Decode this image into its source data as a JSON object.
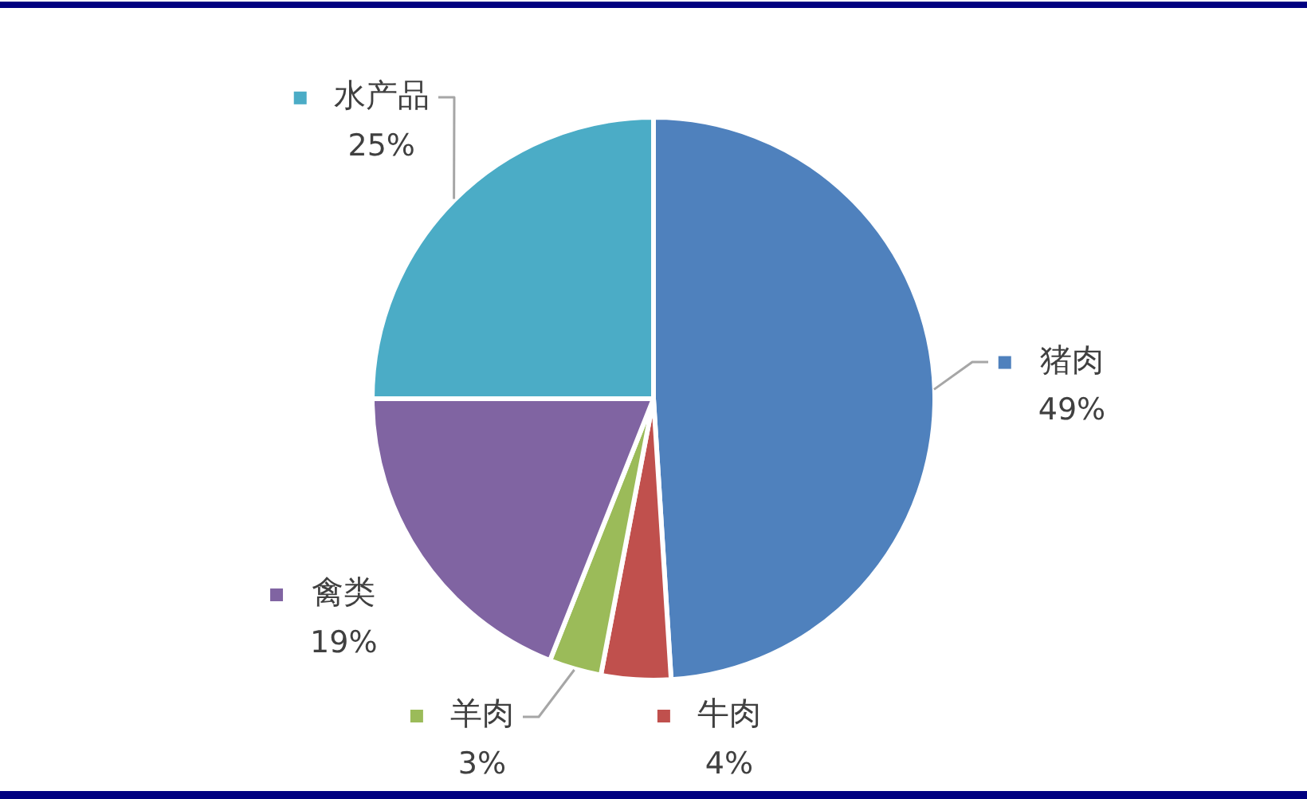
{
  "chart_data": {
    "type": "pie",
    "categories": [
      "猪肉",
      "牛肉",
      "羊肉",
      "禽类",
      "水产品"
    ],
    "values": [
      49,
      4,
      3,
      19,
      25
    ],
    "colors": [
      "#4f81bd",
      "#c0504d",
      "#9bbb59",
      "#8064a2",
      "#4bacc6"
    ],
    "value_labels": [
      "49%",
      "4%",
      "3%",
      "19%",
      "25%"
    ],
    "legend": true
  }
}
